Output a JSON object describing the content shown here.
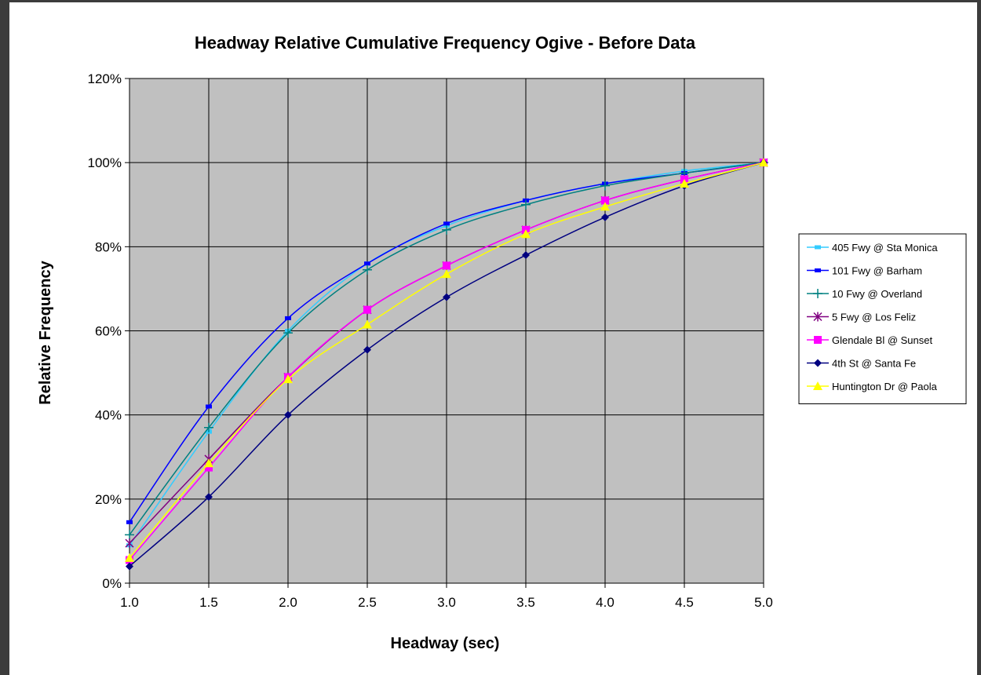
{
  "chart_data": {
    "type": "line",
    "title": "Headway Relative Cumulative Frequency Ogive - Before Data",
    "xlabel": "Headway (sec)",
    "ylabel": "Relative Frequency",
    "x": [
      1.0,
      1.5,
      2.0,
      2.5,
      3.0,
      3.5,
      4.0,
      4.5,
      5.0
    ],
    "x_tick_labels": [
      "1.0",
      "1.5",
      "2.0",
      "2.5",
      "3.0",
      "3.5",
      "4.0",
      "4.5",
      "5.0"
    ],
    "xlim": [
      1.0,
      5.0
    ],
    "ylim": [
      0,
      120
    ],
    "y_ticks": [
      0,
      20,
      40,
      60,
      80,
      100,
      120
    ],
    "y_tick_labels": [
      "0%",
      "20%",
      "40%",
      "60%",
      "80%",
      "100%",
      "120%"
    ],
    "grid": true,
    "plot_background": "#c0c0c0",
    "legend_position": "right",
    "series": [
      {
        "name": "405 Fwy @ Sta Monica",
        "color": "#33ccff",
        "marker": "dash",
        "values": [
          9,
          36,
          60,
          76,
          85,
          91,
          95,
          98,
          100
        ]
      },
      {
        "name": "101 Fwy @ Barham",
        "color": "#0000ff",
        "marker": "dash",
        "values": [
          14.5,
          42,
          63,
          76,
          85.5,
          91,
          95,
          97.5,
          100
        ]
      },
      {
        "name": "10 Fwy @ Overland",
        "color": "#008080",
        "marker": "plus",
        "values": [
          11.5,
          37,
          59.5,
          74.5,
          84,
          90,
          94.5,
          97.5,
          100
        ]
      },
      {
        "name": "5 Fwy @ Los Feliz",
        "color": "#800080",
        "marker": "star",
        "values": [
          9.5,
          29.5,
          49,
          65,
          75.5,
          84,
          91,
          96,
          100
        ]
      },
      {
        "name": "Glendale Bl @ Sunset",
        "color": "#ff00ff",
        "marker": "square",
        "values": [
          5.5,
          27.5,
          49,
          65,
          75.5,
          84,
          91,
          96,
          100
        ]
      },
      {
        "name": "4th St @ Santa Fe",
        "color": "#000080",
        "marker": "diamond",
        "values": [
          4,
          20.5,
          40,
          55.5,
          68,
          78,
          87,
          94.5,
          100
        ]
      },
      {
        "name": "Huntington Dr @ Paola",
        "color": "#ffff00",
        "marker": "triangle",
        "values": [
          6,
          28.5,
          48.5,
          61.5,
          73.5,
          83,
          89.5,
          95,
          100
        ]
      }
    ]
  }
}
